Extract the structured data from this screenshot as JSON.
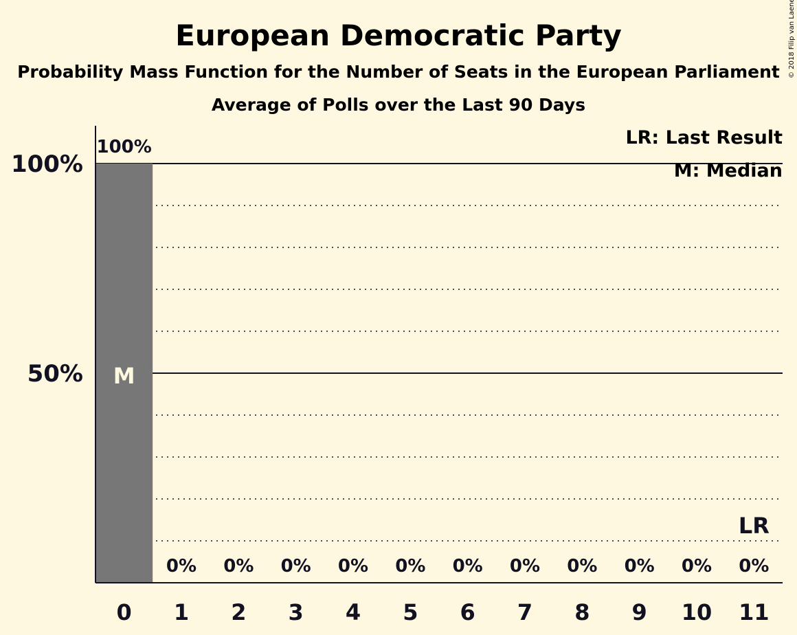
{
  "chart_data": {
    "type": "bar",
    "title": "European Democratic Party",
    "subtitle": "Probability Mass Function for the Number of Seats in the European Parliament",
    "subtitle2": "Average of Polls over the Last 90 Days",
    "copyright": "© 2018 Filip van Laenen",
    "categories": [
      "0",
      "1",
      "2",
      "3",
      "4",
      "5",
      "6",
      "7",
      "8",
      "9",
      "10",
      "11"
    ],
    "values": [
      100,
      0,
      0,
      0,
      0,
      0,
      0,
      0,
      0,
      0,
      0,
      0
    ],
    "value_labels": [
      "100%",
      "0%",
      "0%",
      "0%",
      "0%",
      "0%",
      "0%",
      "0%",
      "0%",
      "0%",
      "0%",
      "0%"
    ],
    "ylim": [
      0,
      100
    ],
    "yticks": [
      {
        "value": 50,
        "label": "50%"
      },
      {
        "value": 100,
        "label": "100%"
      }
    ],
    "gridlines_dotted": [
      10,
      20,
      30,
      40,
      60,
      70,
      80,
      90
    ],
    "median_seat": "0",
    "median_marker": "M",
    "last_result_seat": "11",
    "last_result_marker": "LR",
    "legend": {
      "last_result": "LR: Last Result",
      "median": "M: Median"
    },
    "colors": {
      "background": "#FFF8E1",
      "bar": "#777777",
      "text": "#111122",
      "median_text": "#FFF8E1"
    }
  }
}
